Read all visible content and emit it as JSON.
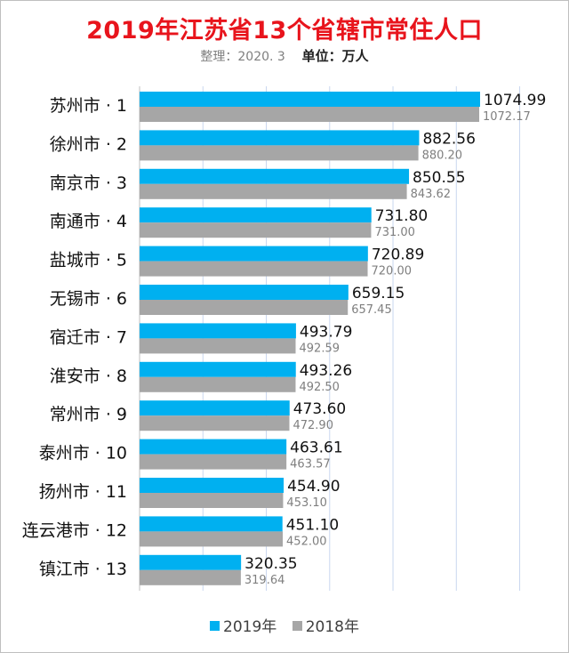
{
  "title": "2019年江苏省13个省辖市常住人口",
  "subtitle": {
    "note": "整理：2020. 3",
    "unit_label": "单位：万人"
  },
  "colors": {
    "title": "#e8141c",
    "series_2019": "#00b0f0",
    "series_2018": "#a6a6a6",
    "grid": "#c9d7ef"
  },
  "chart_data": {
    "type": "bar",
    "orientation": "horizontal",
    "title": "2019年江苏省13个省辖市常住人口",
    "unit": "万人",
    "categories": [
      "苏州市 · 1",
      "徐州市 · 2",
      "南京市 · 3",
      "南通市 · 4",
      "盐城市 · 5",
      "无锡市 · 6",
      "宿迁市 · 7",
      "淮安市 · 8",
      "常州市 · 9",
      "泰州市 · 10",
      "扬州市 · 11",
      "连云港市 · 12",
      "镇江市 · 13"
    ],
    "series": [
      {
        "name": "2019年",
        "values": [
          1074.99,
          882.56,
          850.55,
          731.8,
          720.89,
          659.15,
          493.79,
          493.26,
          473.6,
          463.61,
          454.9,
          451.1,
          320.35
        ],
        "labels": [
          "1074.99",
          "882.56",
          "850.55",
          "731.80",
          "720.89",
          "659.15",
          "493.79",
          "493.26",
          "473.60",
          "463.61",
          "454.90",
          "451.10",
          "320.35"
        ]
      },
      {
        "name": "2018年",
        "values": [
          1072.17,
          880.2,
          843.62,
          731.0,
          720.0,
          657.45,
          492.59,
          492.5,
          472.9,
          463.57,
          453.1,
          452.0,
          319.64
        ],
        "labels": [
          "1072.17",
          "880.20",
          "843.62",
          "731.00",
          "720.00",
          "657.45",
          "492.59",
          "492.50",
          "472.90",
          "463.57",
          "453.10",
          "452.00",
          "319.64"
        ]
      }
    ],
    "xlim": [
      0,
      1200
    ],
    "grid": true,
    "legend": "bottom"
  },
  "legend": [
    {
      "label": "2019年"
    },
    {
      "label": "2018年"
    }
  ]
}
